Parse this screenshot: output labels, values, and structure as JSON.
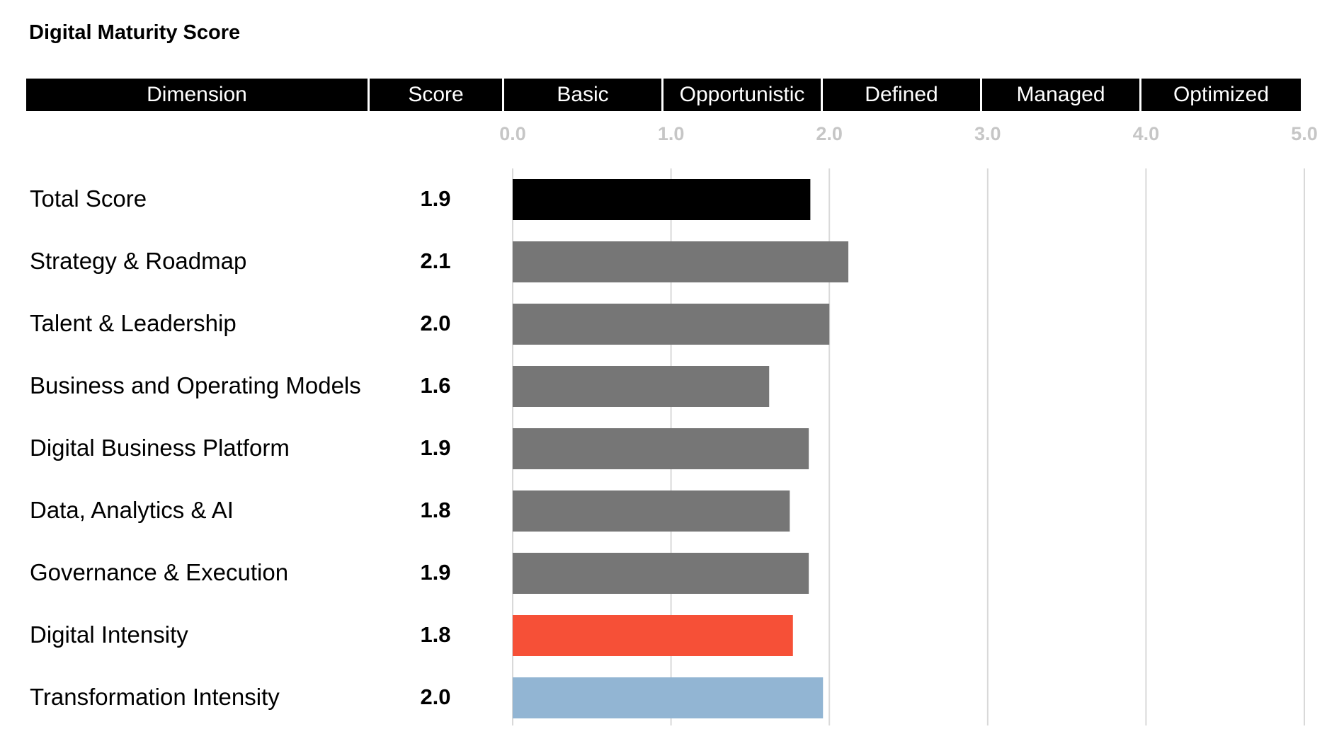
{
  "header": {
    "title": "Digital Maturity Score",
    "columns": {
      "dimension": "Dimension",
      "score": "Score",
      "levels": [
        "Basic",
        "Opportunistic",
        "Defined",
        "Managed",
        "Optimized"
      ]
    }
  },
  "colors": {
    "header_bg": "#000000",
    "header_text": "#ffffff",
    "total_bar": "#000000",
    "dimension_bar": "#767676",
    "digital_intensity_bar": "#f65037",
    "transformation_intensity_bar": "#92b5d3",
    "gridline": "#d9d9d9",
    "tick_label": "#c6c6c6"
  },
  "chart_data": {
    "type": "bar",
    "orientation": "horizontal",
    "xlim": [
      0,
      5
    ],
    "ticks": [
      "0.0",
      "1.0",
      "2.0",
      "3.0",
      "4.0",
      "5.0"
    ],
    "grid": true,
    "categories": [
      "Total Score",
      "Strategy & Roadmap",
      "Talent & Leadership",
      "Business and Operating Models",
      "Digital Business Platform",
      "Data, Analytics & AI",
      "Governance & Execution",
      "Digital Intensity",
      "Transformation Intensity"
    ],
    "score_labels": [
      "1.9",
      "2.1",
      "2.0",
      "1.6",
      "1.9",
      "1.8",
      "1.9",
      "1.8",
      "2.0"
    ],
    "values": [
      1.88,
      2.12,
      2.0,
      1.62,
      1.87,
      1.75,
      1.87,
      1.77,
      1.96
    ],
    "bar_colors": [
      "#000000",
      "#767676",
      "#767676",
      "#767676",
      "#767676",
      "#767676",
      "#767676",
      "#f65037",
      "#92b5d3"
    ]
  }
}
